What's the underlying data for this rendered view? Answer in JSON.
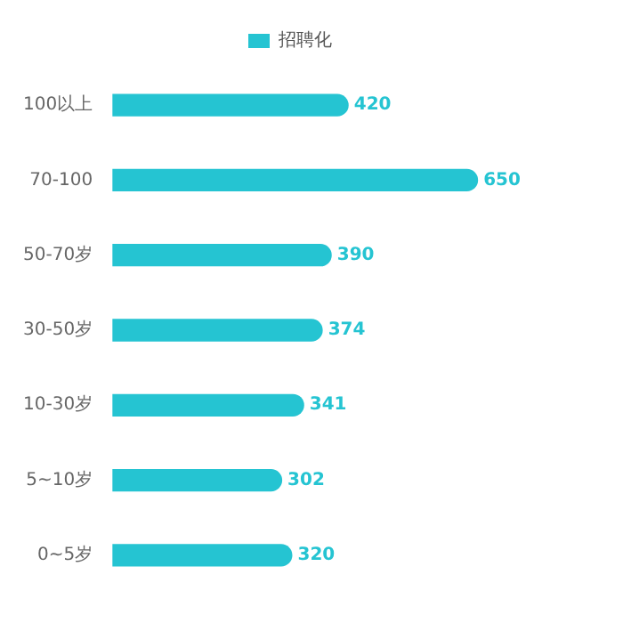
{
  "chart_data": {
    "type": "bar",
    "orientation": "horizontal",
    "categories": [
      "100以上",
      "70-100",
      "50-70岁",
      "30-50岁",
      "10-30岁",
      "5~10岁",
      "0~5岁"
    ],
    "series": [
      {
        "name": "招聘化",
        "color": "#25c4d2",
        "values": [
          420,
          650,
          390,
          374,
          341,
          302,
          320
        ]
      }
    ],
    "data_labels": true,
    "legend": "top",
    "grid": false
  }
}
